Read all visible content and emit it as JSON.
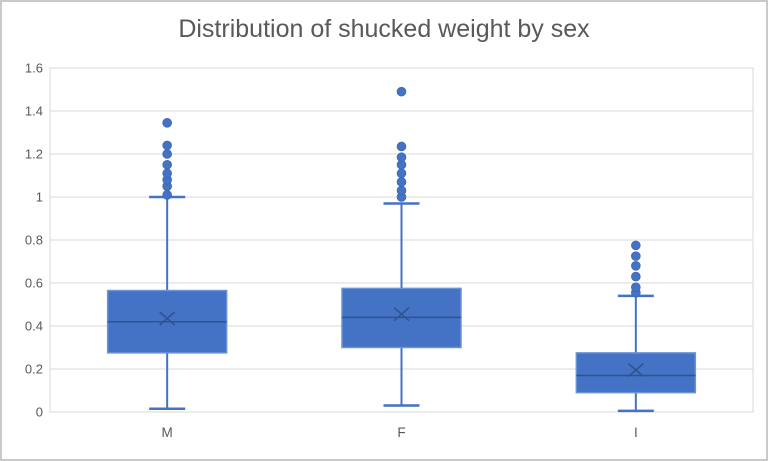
{
  "chart_data": {
    "type": "boxplot",
    "title": "Distribution of shucked weight by sex",
    "categories": [
      "M",
      "F",
      "I"
    ],
    "xlabel": "",
    "ylabel": "",
    "ylim": [
      0,
      1.6
    ],
    "y_ticks": [
      0,
      0.2,
      0.4,
      0.6,
      0.8,
      1,
      1.2,
      1.4,
      1.6
    ],
    "y_tick_labels": [
      "0",
      "0.2",
      "0.4",
      "0.6",
      "0.8",
      "1",
      "1.2",
      "1.4",
      "1.6"
    ],
    "grid": true,
    "legend": false,
    "series": [
      {
        "category": "M",
        "whisker_low": 0.015,
        "q1": 0.275,
        "median": 0.42,
        "mean": 0.435,
        "q3": 0.565,
        "whisker_high": 1.0,
        "outliers": [
          1.01,
          1.05,
          1.08,
          1.11,
          1.15,
          1.2,
          1.24,
          1.345
        ]
      },
      {
        "category": "F",
        "whisker_low": 0.03,
        "q1": 0.3,
        "median": 0.44,
        "mean": 0.455,
        "q3": 0.575,
        "whisker_high": 0.97,
        "outliers": [
          1.0,
          1.03,
          1.07,
          1.11,
          1.15,
          1.185,
          1.235,
          1.49
        ]
      },
      {
        "category": "I",
        "whisker_low": 0.005,
        "q1": 0.09,
        "median": 0.17,
        "mean": 0.195,
        "q3": 0.275,
        "whisker_high": 0.54,
        "outliers": [
          0.555,
          0.58,
          0.63,
          0.68,
          0.725,
          0.775
        ]
      }
    ],
    "colors": {
      "box_fill": "#4472C4",
      "box_border": "#6A93D8",
      "median_line": "#2E5490",
      "mean_marker": "#2E5490",
      "whisker": "#4472C4",
      "outlier_fill": "#4472C4",
      "outlier_border": "#3D67B1",
      "gridline": "#D9D9D9",
      "plot_border": "#D9D9D9",
      "text": "#595959",
      "frame_border": "#C9C9C9"
    }
  }
}
